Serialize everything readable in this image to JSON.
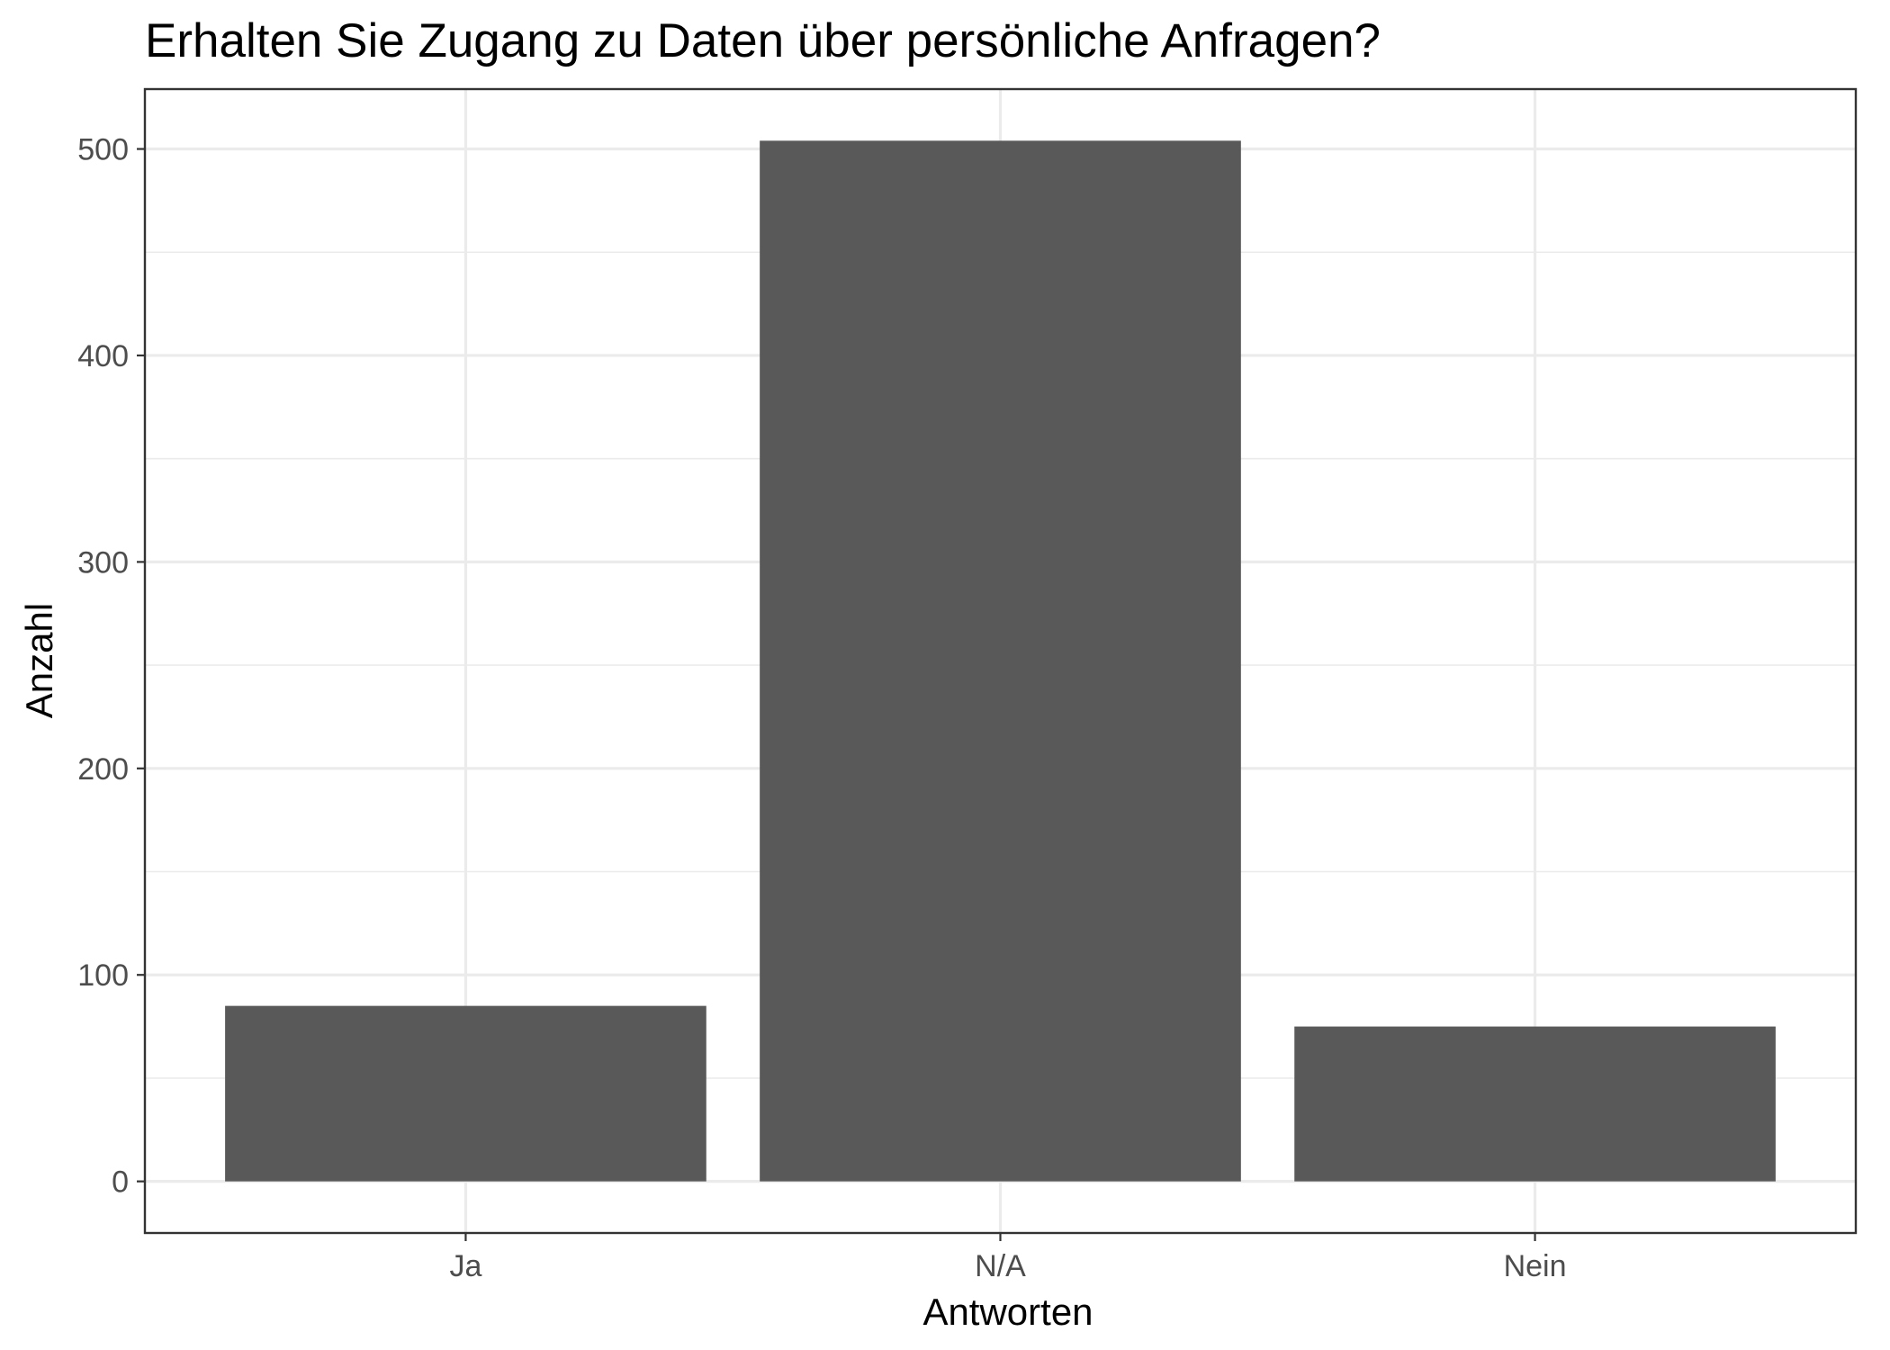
{
  "colors": {
    "bar_fill": "#595959",
    "background": "#ffffff",
    "grid": "#ebebeb",
    "panel_border": "#333333",
    "tick_text": "#4d4d4d",
    "title_text": "#000000"
  },
  "chart_data": {
    "type": "bar",
    "title": "Erhalten Sie Zugang zu Daten über persönliche Anfragen?",
    "xlabel": "Antworten",
    "ylabel": "Anzahl",
    "categories": [
      "Ja",
      "N/A",
      "Nein"
    ],
    "values": [
      85,
      504,
      75
    ],
    "ylim": [
      -25,
      529
    ],
    "y_ticks": [
      0,
      100,
      200,
      300,
      400,
      500
    ],
    "y_tick_labels": [
      "0",
      "100",
      "200",
      "300",
      "400",
      "500"
    ],
    "grid": true,
    "legend": "none"
  }
}
